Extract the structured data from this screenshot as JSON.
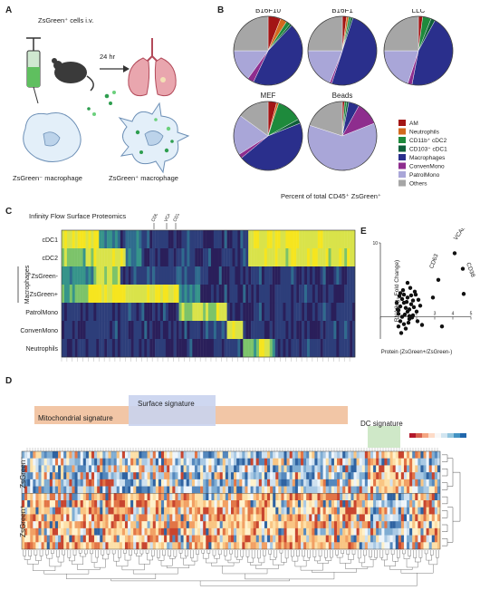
{
  "panels": {
    "a": {
      "label": "A",
      "injection_text": "ZsGreen⁺ cells i.v.",
      "time_text": "24 hr",
      "neg_macrophage": "ZsGreen⁻ macrophage",
      "pos_macrophage": "ZsGreen⁺ macrophage"
    },
    "b": {
      "label": "B",
      "caption": "Percent of total CD45⁺ ZsGreen⁺"
    },
    "c": {
      "label": "C",
      "title": "Infinity Flow Surface Proteomics",
      "top_markers": [
        "CD63",
        "VCAM1",
        "CD38"
      ],
      "rows": [
        "cDC1",
        "cDC2",
        "ZsGreen-",
        "ZsGreen+",
        "PatrolMono",
        "ConvenMono",
        "Neutrophils"
      ],
      "side_label": "Macrophages"
    },
    "d": {
      "label": "D",
      "mito_label": "Mitochondrial signature",
      "surface_label": "Surface signature",
      "dc_label": "DC signature",
      "row_labels": [
        "ZsGreen⁻",
        "ZsGreen⁺"
      ]
    },
    "e": {
      "label": "E",
      "xlabel": "Protein (ZsGreen+/ZsGreen-)",
      "ylabel": "RNA(log₂ Fold Change)",
      "annotations": [
        "CD63",
        "VCAM1",
        "CD38"
      ]
    }
  },
  "colors": {
    "AM": "#a31515",
    "Neutrophils": "#d2691e",
    "CD11b+ cDC2": "#1e8a3c",
    "CD103+ cDC1": "#0f5f3a",
    "Macrophages": "#2a2f8c",
    "ConvenMono": "#8e2d8e",
    "PatrolMono": "#a9a6d8",
    "Others": "#a6a6a6",
    "mito_band": "#f2c6a6",
    "surface_band": "#c9d3ee",
    "dc_band": "#cfe8c8"
  },
  "chart_data": [
    {
      "type": "pie",
      "panel": "B",
      "legend_position": "right",
      "legend": [
        "AM",
        "Neutrophils",
        "CD11b⁺ cDC2",
        "CD103⁺ cDC1",
        "Macrophages",
        "ConvenMono",
        "PatrolMono",
        "Others"
      ],
      "pies": [
        {
          "title": "B16F10",
          "values": {
            "AM": 6,
            "Neutrophils": 3,
            "CD11b+ cDC2": 2,
            "CD103+ cDC1": 1,
            "Macrophages": 45,
            "ConvenMono": 3,
            "PatrolMono": 15,
            "Others": 25
          }
        },
        {
          "title": "B16F1",
          "values": {
            "AM": 2,
            "Neutrophils": 1,
            "CD11b+ cDC2": 1,
            "CD103+ cDC1": 1,
            "Macrophages": 50,
            "ConvenMono": 1,
            "PatrolMono": 19,
            "Others": 25
          }
        },
        {
          "title": "LLC",
          "values": {
            "AM": 2,
            "Neutrophils": 0,
            "CD11b+ cDC2": 4,
            "CD103+ cDC1": 2,
            "Macrophages": 45,
            "ConvenMono": 2,
            "PatrolMono": 20,
            "Others": 25
          }
        },
        {
          "title": "MEF",
          "values": {
            "AM": 4,
            "Neutrophils": 1,
            "CD11b+ cDC2": 12,
            "CD103+ cDC1": 2,
            "Macrophages": 45,
            "ConvenMono": 2,
            "PatrolMono": 19,
            "Others": 15
          }
        },
        {
          "title": "Beads",
          "values": {
            "AM": 1,
            "Neutrophils": 0,
            "CD11b+ cDC2": 1,
            "CD103+ cDC1": 1,
            "Macrophages": 5,
            "ConvenMono": 11,
            "PatrolMono": 61,
            "Others": 20
          }
        }
      ]
    },
    {
      "type": "scatter",
      "panel": "E",
      "xlim": [
        0,
        5
      ],
      "ylim": [
        -3,
        10
      ],
      "xticks": [
        "0",
        "1",
        "2",
        "3",
        "4",
        "5"
      ],
      "ytick_labels": [
        "10"
      ],
      "points": [
        [
          1.0,
          0.4
        ],
        [
          1.1,
          -0.6
        ],
        [
          0.9,
          1.9
        ],
        [
          1.3,
          3.0
        ],
        [
          1.2,
          2.4
        ],
        [
          1.4,
          1.2
        ],
        [
          1.5,
          0.7
        ],
        [
          1.0,
          -1.3
        ],
        [
          1.6,
          -0.3
        ],
        [
          1.8,
          2.2
        ],
        [
          1.1,
          1.4
        ],
        [
          1.3,
          -1.0
        ],
        [
          1.9,
          3.4
        ],
        [
          1.7,
          1.7
        ],
        [
          1.5,
          2.6
        ],
        [
          1.2,
          0.0
        ],
        [
          0.95,
          1.0
        ],
        [
          1.4,
          -1.6
        ],
        [
          1.6,
          1.0
        ],
        [
          1.8,
          0.2
        ],
        [
          2.0,
          0.7
        ],
        [
          2.1,
          2.3
        ],
        [
          1.25,
          3.6
        ],
        [
          1.05,
          2.8
        ],
        [
          1.35,
          0.3
        ],
        [
          1.55,
          -0.8
        ],
        [
          1.75,
          -0.1
        ],
        [
          1.15,
          -2.2
        ],
        [
          1.45,
          2.0
        ],
        [
          1.65,
          3.9
        ],
        [
          1.85,
          1.3
        ],
        [
          2.05,
          -0.6
        ],
        [
          1.1,
          3.2
        ],
        [
          1.3,
          1.9
        ],
        [
          1.5,
          4.6
        ],
        [
          1.7,
          2.9
        ],
        [
          1.95,
          3.0
        ],
        [
          2.2,
          1.5
        ],
        [
          1.0,
          0.9
        ],
        [
          1.6,
          0.1
        ],
        [
          2.3,
          -1.1
        ],
        [
          3.4,
          -1.3
        ],
        [
          2.9,
          2.6
        ],
        [
          3.2,
          5.0
        ],
        [
          4.1,
          8.6
        ],
        [
          4.55,
          6.5
        ],
        [
          4.6,
          3.1
        ]
      ],
      "labeled_points": [
        {
          "label": "CD63",
          "x": 3.2,
          "y": 5.0
        },
        {
          "label": "VCAM1",
          "x": 4.1,
          "y": 8.6
        },
        {
          "label": "CD38",
          "x": 4.55,
          "y": 6.5
        }
      ]
    },
    {
      "type": "heatmap",
      "panel": "C",
      "rows": [
        "cDC1",
        "cDC2",
        "ZsGreen-",
        "ZsGreen+",
        "PatrolMono",
        "ConvenMono",
        "Neutrophils"
      ],
      "row_group": "Macrophages",
      "highlighted_markers": [
        "CD63",
        "VCAM1",
        "CD38"
      ]
    },
    {
      "type": "heatmap",
      "panel": "D",
      "groups": [
        "ZsGreen⁻",
        "ZsGreen⁺"
      ],
      "signatures": [
        "Mitochondrial signature",
        "Surface signature",
        "DC signature"
      ]
    }
  ]
}
